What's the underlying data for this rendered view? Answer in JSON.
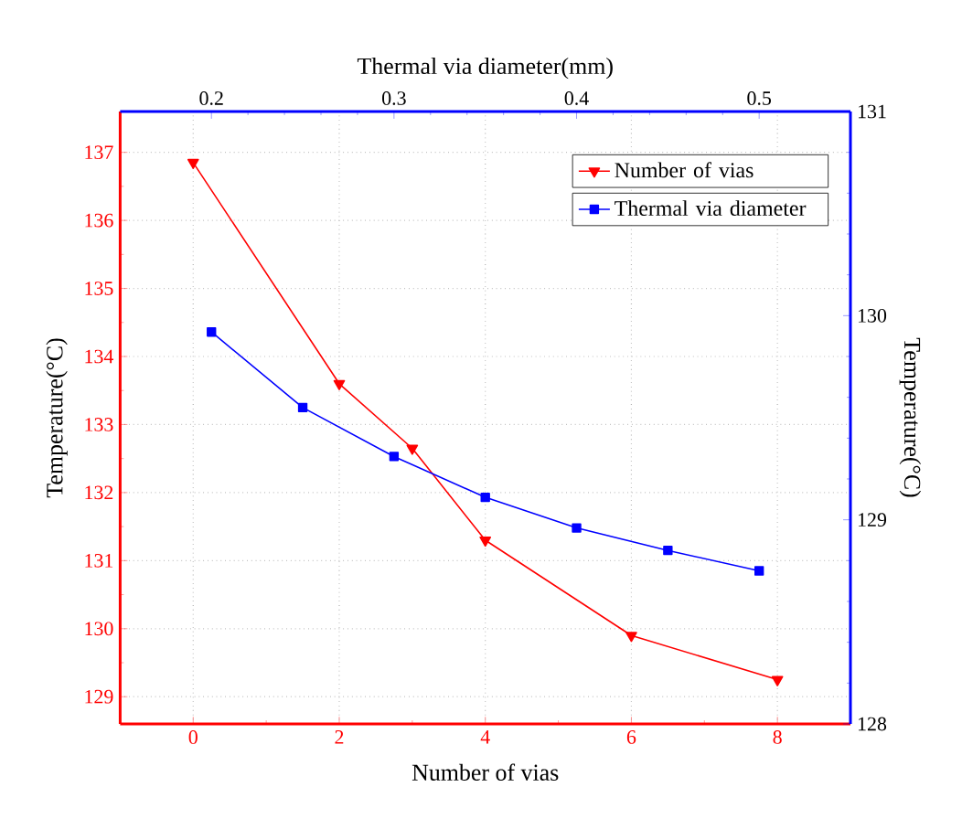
{
  "chart_data": [
    {
      "type": "line",
      "xlabel": "Number of vias",
      "ylabel": "Temperature(°C)",
      "x": [
        0,
        2,
        3,
        4,
        6,
        8
      ],
      "series": [
        {
          "name": "Number of vias",
          "color": "#ff0000",
          "marker": "triangle",
          "values": [
            136.85,
            133.6,
            132.65,
            131.3,
            129.9,
            129.25
          ]
        }
      ],
      "xlim": [
        -1,
        9
      ],
      "xticks": [
        0,
        2,
        4,
        6,
        8
      ],
      "ylim": [
        128.6,
        137.6
      ],
      "yticks": [
        129,
        130,
        131,
        132,
        133,
        134,
        135,
        136,
        137
      ],
      "grid": true,
      "legend": "top right",
      "line_style": "solid"
    },
    {
      "type": "line",
      "xlabel": "Thermal via diameter(mm)",
      "ylabel": "Temperature(°C)",
      "x": [
        0.2,
        0.25,
        0.3,
        0.35,
        0.4,
        0.45,
        0.5
      ],
      "series": [
        {
          "name": "Thermal via diameter",
          "color": "#0000ff",
          "marker": "square",
          "values": [
            129.92,
            129.55,
            129.31,
            129.11,
            128.96,
            128.85,
            128.75
          ]
        }
      ],
      "xlim": [
        0.15,
        0.55
      ],
      "xticks": [
        0.2,
        0.3,
        0.4,
        0.5
      ],
      "ylim": [
        128,
        131
      ],
      "yticks": [
        128,
        129,
        130,
        131
      ],
      "legend": "top right",
      "line_style": "solid"
    }
  ]
}
